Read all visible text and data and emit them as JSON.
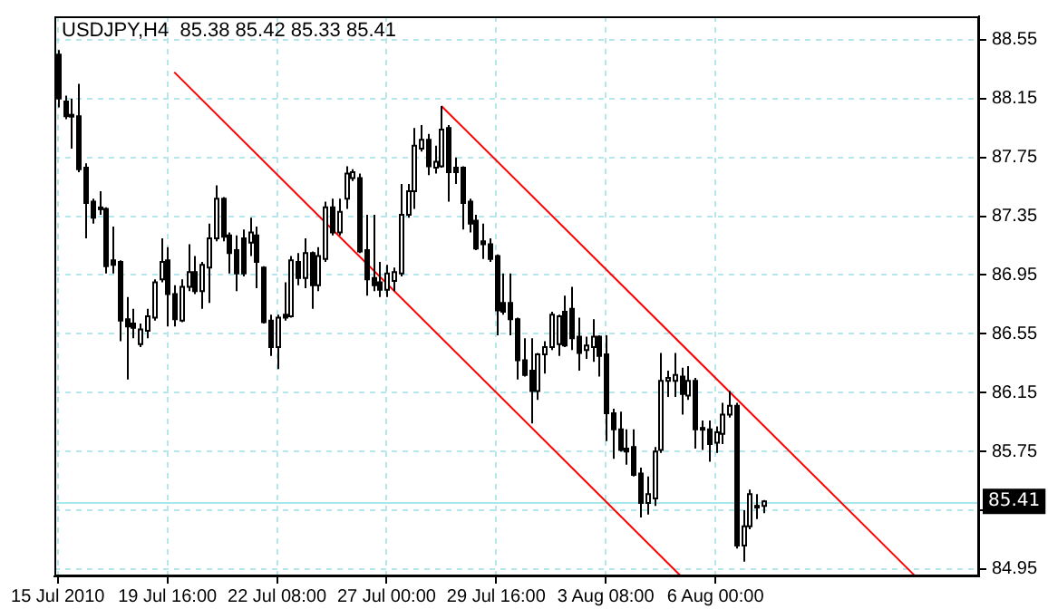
{
  "chart_data": {
    "type": "candlestick",
    "title": "USDJPY,H4  85.38 85.42 85.33 85.41",
    "categories": [
      "15 Jul 2010",
      null,
      null,
      null,
      null,
      null,
      null,
      null,
      null,
      null,
      null,
      null,
      null,
      null,
      null,
      null,
      "19 Jul 16:00",
      null,
      null,
      null,
      null,
      null,
      null,
      null,
      null,
      null,
      null,
      null,
      null,
      null,
      null,
      null,
      "22 Jul 08:00",
      null,
      null,
      null,
      null,
      null,
      null,
      null,
      null,
      null,
      null,
      null,
      null,
      null,
      null,
      null,
      "27 Jul 00:00",
      null,
      null,
      null,
      null,
      null,
      null,
      null,
      null,
      null,
      null,
      null,
      null,
      null,
      null,
      null,
      "29 Jul 16:00",
      null,
      null,
      null,
      null,
      null,
      null,
      null,
      null,
      null,
      null,
      null,
      null,
      null,
      null,
      null,
      "3 Aug 08:00",
      null,
      null,
      null,
      null,
      null,
      null,
      null,
      null,
      null,
      null,
      null,
      null,
      null,
      null,
      null,
      "6 Aug 00:00",
      null,
      null,
      null,
      null,
      null,
      null,
      null,
      null,
      null,
      null,
      null,
      null,
      null,
      null,
      null,
      null,
      null,
      null,
      null,
      null,
      null,
      null,
      null,
      null,
      null,
      null,
      null,
      null,
      null,
      null,
      null,
      null,
      null,
      null,
      null,
      null,
      null,
      null
    ],
    "ohlc": [
      [
        88.45,
        88.48,
        88.09,
        88.15
      ],
      [
        88.13,
        88.17,
        88.01,
        88.03
      ],
      [
        88.03,
        88.15,
        87.81,
        88.04
      ],
      [
        88.03,
        88.25,
        87.65,
        87.67
      ],
      [
        87.68,
        87.71,
        87.2,
        87.44
      ],
      [
        87.45,
        87.47,
        87.3,
        87.34
      ],
      [
        87.4,
        87.52,
        87.36,
        87.41
      ],
      [
        87.4,
        87.41,
        86.96,
        87.01
      ],
      [
        87.05,
        87.28,
        86.96,
        87.02
      ],
      [
        87.04,
        87.05,
        86.5,
        86.64
      ],
      [
        86.65,
        86.8,
        86.24,
        86.6
      ],
      [
        86.62,
        86.72,
        86.52,
        86.59
      ],
      [
        86.48,
        86.62,
        86.46,
        86.58
      ],
      [
        86.57,
        86.72,
        86.52,
        86.67
      ],
      [
        86.66,
        86.92,
        86.64,
        86.9
      ],
      [
        86.92,
        87.2,
        86.9,
        87.04
      ],
      [
        87.05,
        87.14,
        86.6,
        86.82
      ],
      [
        86.82,
        86.88,
        86.6,
        86.65
      ],
      [
        86.64,
        86.92,
        86.63,
        86.87
      ],
      [
        86.87,
        87.16,
        86.84,
        86.97
      ],
      [
        86.97,
        87.08,
        86.82,
        86.84
      ],
      [
        86.84,
        87.04,
        86.72,
        87.02
      ],
      [
        87.0,
        87.3,
        86.76,
        87.2
      ],
      [
        87.2,
        87.56,
        87.18,
        87.47
      ],
      [
        87.47,
        87.48,
        87.18,
        87.21
      ],
      [
        87.22,
        87.24,
        86.96,
        87.1
      ],
      [
        87.12,
        87.22,
        86.84,
        86.96
      ],
      [
        87.2,
        87.26,
        86.94,
        86.96
      ],
      [
        87.17,
        87.34,
        87.08,
        87.24
      ],
      [
        87.22,
        87.28,
        86.86,
        87.04
      ],
      [
        87.0,
        87.01,
        86.62,
        86.63
      ],
      [
        86.64,
        86.68,
        86.4,
        86.46
      ],
      [
        86.46,
        86.68,
        86.31,
        86.66
      ],
      [
        86.68,
        86.9,
        86.64,
        86.66
      ],
      [
        86.67,
        87.08,
        86.66,
        87.05
      ],
      [
        87.04,
        87.1,
        86.88,
        86.93
      ],
      [
        86.93,
        87.2,
        86.86,
        87.1
      ],
      [
        87.1,
        87.11,
        86.72,
        86.88
      ],
      [
        86.88,
        87.14,
        86.84,
        87.08
      ],
      [
        87.06,
        87.45,
        87.04,
        87.41
      ],
      [
        87.41,
        87.47,
        87.22,
        87.24
      ],
      [
        87.24,
        87.47,
        87.22,
        87.38
      ],
      [
        87.47,
        87.69,
        87.4,
        87.64
      ],
      [
        87.61,
        87.67,
        87.59,
        87.65
      ],
      [
        87.61,
        87.64,
        87.1,
        87.11
      ],
      [
        87.12,
        87.36,
        86.81,
        86.92
      ],
      [
        86.93,
        87.36,
        86.84,
        86.88
      ],
      [
        86.9,
        87.04,
        86.8,
        86.85
      ],
      [
        86.85,
        87.02,
        86.8,
        86.96
      ],
      [
        86.91,
        87.0,
        86.84,
        86.97
      ],
      [
        86.96,
        87.57,
        86.94,
        87.36
      ],
      [
        87.36,
        87.57,
        87.34,
        87.52
      ],
      [
        87.52,
        87.95,
        87.4,
        87.83
      ],
      [
        87.81,
        87.97,
        87.79,
        87.87
      ],
      [
        87.87,
        87.91,
        87.63,
        87.69
      ],
      [
        87.68,
        87.83,
        87.64,
        87.72
      ],
      [
        87.69,
        88.1,
        87.68,
        87.94
      ],
      [
        87.95,
        87.97,
        87.45,
        87.65
      ],
      [
        87.68,
        87.75,
        87.57,
        87.65
      ],
      [
        87.68,
        87.69,
        87.26,
        87.44
      ],
      [
        87.45,
        87.47,
        87.24,
        87.3
      ],
      [
        87.32,
        87.36,
        87.12,
        87.13
      ],
      [
        87.18,
        87.3,
        87.06,
        87.16
      ],
      [
        87.16,
        87.2,
        87.04,
        87.06
      ],
      [
        87.08,
        87.09,
        86.54,
        86.71
      ],
      [
        86.76,
        86.96,
        86.68,
        86.7
      ],
      [
        86.76,
        86.96,
        86.54,
        86.65
      ],
      [
        86.65,
        86.66,
        86.24,
        86.37
      ],
      [
        86.37,
        86.52,
        86.26,
        86.27
      ],
      [
        86.3,
        86.52,
        85.94,
        86.16
      ],
      [
        86.16,
        86.42,
        86.1,
        86.41
      ],
      [
        86.41,
        86.5,
        86.28,
        86.46
      ],
      [
        86.46,
        86.7,
        86.44,
        86.68
      ],
      [
        86.48,
        86.68,
        86.4,
        86.67
      ],
      [
        86.7,
        86.81,
        86.46,
        86.47
      ],
      [
        86.72,
        86.87,
        86.44,
        86.52
      ],
      [
        86.53,
        86.66,
        86.3,
        86.42
      ],
      [
        86.44,
        86.53,
        86.38,
        86.47
      ],
      [
        86.46,
        86.65,
        86.36,
        86.53
      ],
      [
        86.53,
        86.54,
        86.26,
        86.4
      ],
      [
        86.41,
        86.54,
        85.82,
        86.01
      ],
      [
        86.01,
        86.04,
        85.7,
        85.9
      ],
      [
        85.9,
        86.02,
        85.75,
        85.76
      ],
      [
        85.77,
        85.9,
        85.66,
        85.75
      ],
      [
        85.78,
        85.9,
        85.58,
        85.59
      ],
      [
        85.6,
        85.64,
        85.3,
        85.4
      ],
      [
        85.4,
        85.58,
        85.32,
        85.46
      ],
      [
        85.43,
        85.78,
        85.38,
        85.75
      ],
      [
        85.76,
        86.42,
        85.74,
        86.23
      ],
      [
        86.23,
        86.3,
        86.12,
        86.25
      ],
      [
        86.23,
        86.42,
        86.12,
        86.27
      ],
      [
        86.26,
        86.32,
        86.0,
        86.14
      ],
      [
        86.13,
        86.33,
        86.1,
        86.23
      ],
      [
        86.23,
        86.25,
        85.77,
        85.9
      ],
      [
        85.91,
        85.96,
        85.76,
        85.9
      ],
      [
        85.9,
        85.96,
        85.68,
        85.8
      ],
      [
        85.81,
        85.92,
        85.74,
        85.88
      ],
      [
        85.87,
        86.08,
        85.8,
        86.0
      ],
      [
        86.0,
        86.16,
        85.98,
        86.06
      ],
      [
        86.06,
        86.08,
        85.09,
        85.11
      ],
      [
        85.11,
        85.35,
        85.0,
        85.24
      ],
      [
        85.24,
        85.49,
        85.22,
        85.46
      ],
      [
        85.38,
        85.46,
        85.29,
        85.37
      ],
      [
        85.38,
        85.42,
        85.33,
        85.41
      ],
      null,
      null,
      null,
      null,
      null,
      null,
      null,
      null,
      null,
      null,
      null,
      null,
      null,
      null,
      null,
      null,
      null,
      null,
      null,
      null,
      null,
      null,
      null,
      null,
      null,
      null,
      null,
      null,
      null,
      null,
      null
    ],
    "series": [
      {
        "type": "line",
        "color": "#ff0000",
        "values": [
          null,
          null,
          null,
          null,
          null,
          null,
          null,
          null,
          null,
          null,
          null,
          null,
          null,
          null,
          null,
          null,
          null,
          88.33,
          null,
          null,
          null,
          null,
          null,
          null,
          null,
          null,
          null,
          null,
          null,
          null,
          null,
          null,
          null,
          null,
          null,
          null,
          null,
          null,
          null,
          null,
          null,
          null,
          null,
          null,
          null,
          null,
          null,
          null,
          null,
          null,
          null,
          null,
          null,
          null,
          null,
          null,
          null,
          null,
          null,
          null,
          null,
          null,
          null,
          null,
          null,
          null,
          null,
          null,
          null,
          null,
          null,
          null,
          null,
          null,
          null,
          null,
          null,
          null,
          null,
          null,
          null,
          null,
          null,
          null,
          null,
          null,
          null,
          null,
          null,
          null,
          null,
          84.9,
          null,
          null,
          null,
          null,
          null,
          null,
          null,
          null,
          null,
          null,
          null,
          null,
          null,
          null,
          null,
          null,
          null,
          null,
          null,
          null,
          null,
          null,
          null,
          null,
          null,
          null,
          null,
          null,
          null,
          null,
          null,
          null,
          null,
          null,
          null,
          null,
          null,
          null,
          null,
          null,
          null,
          null,
          null
        ]
      },
      {
        "type": "line",
        "color": "#ff0000",
        "values": [
          null,
          null,
          null,
          null,
          null,
          null,
          null,
          null,
          null,
          null,
          null,
          null,
          null,
          null,
          null,
          null,
          null,
          null,
          null,
          null,
          null,
          null,
          null,
          null,
          null,
          null,
          null,
          null,
          null,
          null,
          null,
          null,
          null,
          null,
          null,
          null,
          null,
          null,
          null,
          null,
          null,
          null,
          null,
          null,
          null,
          null,
          null,
          null,
          null,
          null,
          null,
          null,
          null,
          null,
          null,
          null,
          88.1,
          null,
          null,
          null,
          null,
          null,
          null,
          null,
          null,
          null,
          null,
          null,
          null,
          null,
          null,
          null,
          null,
          null,
          null,
          null,
          null,
          null,
          null,
          null,
          null,
          null,
          null,
          null,
          null,
          null,
          null,
          null,
          null,
          null,
          null,
          null,
          null,
          null,
          null,
          null,
          null,
          null,
          null,
          null,
          null,
          null,
          null,
          null,
          null,
          null,
          null,
          null,
          null,
          null,
          null,
          null,
          null,
          null,
          null,
          null,
          null,
          null,
          null,
          null,
          null,
          null,
          null,
          null,
          null,
          84.91,
          null,
          null,
          null,
          null,
          null,
          null,
          null,
          null,
          null
        ]
      }
    ],
    "ylim": [
      84.9,
      88.71
    ],
    "yticks": [
      84.95,
      {
        "value": 85.35,
        "label": null
      },
      85.75,
      86.15,
      86.55,
      86.95,
      87.35,
      87.75,
      88.15,
      88.55
    ],
    "ref_lines": [
      {
        "axis": "y",
        "value": 85.41,
        "label": "85.41",
        "color": "#a6e8ee"
      }
    ],
    "grid": true
  }
}
